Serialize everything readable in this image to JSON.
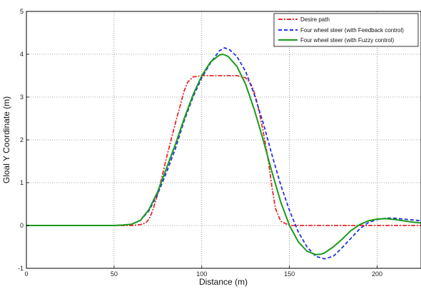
{
  "chart_data": {
    "type": "line",
    "title": "",
    "xlabel": "Distance (m)",
    "ylabel": "Gloal Y Coordinate (m)",
    "xlim": [
      0,
      225
    ],
    "ylim": [
      -1,
      5
    ],
    "xticks": [
      "0",
      "50",
      "100",
      "150",
      "200"
    ],
    "yticks": [
      "-1",
      "0",
      "1",
      "2",
      "3",
      "4",
      "5"
    ],
    "xtick_values": [
      0,
      50,
      100,
      150,
      200
    ],
    "ytick_values": [
      -1,
      0,
      1,
      2,
      3,
      4,
      5
    ],
    "grid": true,
    "legend_position": "top-right",
    "series": [
      {
        "name": "Desire path",
        "color": "#e8282a",
        "style": "dash-dot",
        "x": [
          0,
          60,
          65,
          68,
          70,
          72,
          75,
          78,
          80,
          85,
          88,
          90,
          92,
          95,
          100,
          105,
          110,
          115,
          120,
          125,
          128,
          130,
          132,
          135,
          138,
          140,
          142,
          145,
          150,
          160,
          180,
          200,
          225
        ],
        "y": [
          0,
          0,
          0.02,
          0.06,
          0.15,
          0.35,
          0.75,
          1.25,
          1.6,
          2.4,
          2.85,
          3.15,
          3.35,
          3.47,
          3.5,
          3.5,
          3.5,
          3.5,
          3.5,
          3.45,
          3.3,
          3.1,
          2.8,
          2.2,
          1.5,
          0.9,
          0.4,
          0.1,
          0,
          0,
          0,
          0,
          0
        ]
      },
      {
        "name": "Four wheel steer (with Feedback control)",
        "color": "#2030e8",
        "style": "dashed",
        "x": [
          0,
          50,
          55,
          60,
          65,
          70,
          75,
          80,
          85,
          90,
          95,
          100,
          105,
          110,
          113,
          116,
          120,
          125,
          130,
          135,
          140,
          145,
          150,
          155,
          160,
          165,
          170,
          175,
          180,
          185,
          190,
          195,
          200,
          205,
          210,
          215,
          220,
          225
        ],
        "y": [
          0,
          0,
          0.01,
          0.03,
          0.12,
          0.35,
          0.75,
          1.25,
          1.8,
          2.45,
          3.0,
          3.45,
          3.8,
          4.08,
          4.15,
          4.1,
          3.95,
          3.6,
          3.05,
          2.4,
          1.65,
          0.95,
          0.35,
          -0.15,
          -0.5,
          -0.72,
          -0.78,
          -0.72,
          -0.52,
          -0.3,
          -0.08,
          0.07,
          0.14,
          0.17,
          0.17,
          0.15,
          0.13,
          0.11
        ]
      },
      {
        "name": "Four wheel steer (with Fuzzy control)",
        "color": "#1a9a1a",
        "style": "solid",
        "x": [
          0,
          50,
          55,
          60,
          65,
          70,
          75,
          80,
          85,
          90,
          95,
          100,
          105,
          110,
          112,
          115,
          120,
          125,
          130,
          135,
          140,
          145,
          150,
          155,
          160,
          165,
          168,
          170,
          175,
          180,
          185,
          190,
          195,
          200,
          205,
          210,
          215,
          220,
          225
        ],
        "y": [
          0,
          0,
          0.01,
          0.03,
          0.12,
          0.38,
          0.8,
          1.35,
          1.9,
          2.5,
          3.05,
          3.5,
          3.82,
          3.98,
          4.0,
          3.95,
          3.72,
          3.3,
          2.7,
          2.0,
          1.25,
          0.55,
          0.0,
          -0.38,
          -0.6,
          -0.68,
          -0.67,
          -0.64,
          -0.5,
          -0.32,
          -0.12,
          0.02,
          0.11,
          0.15,
          0.16,
          0.14,
          0.11,
          0.08,
          0.06
        ]
      }
    ]
  }
}
